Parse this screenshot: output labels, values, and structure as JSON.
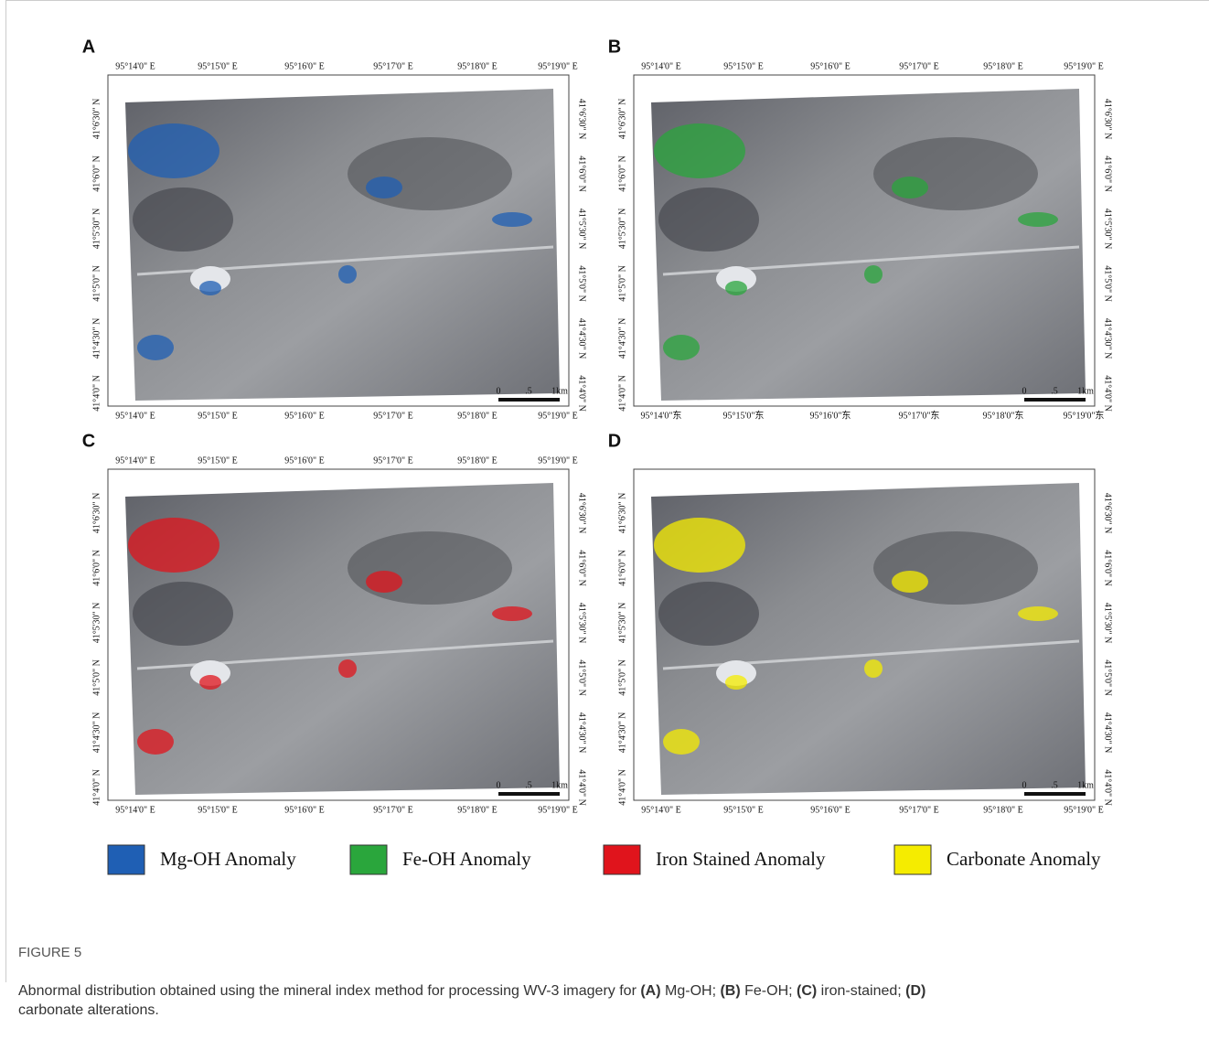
{
  "panels": [
    {
      "label": "A",
      "top_ticks": [
        "95°14'0\" E",
        "95°15'0\" E",
        "95°16'0\" E",
        "95°17'0\" E",
        "95°18'0\" E",
        "95°19'0\" E"
      ],
      "bottom_ticks": [
        "95°14'0\" E",
        "95°15'0\" E",
        "95°16'0\" E",
        "95°17'0\" E",
        "95°18'0\" E",
        "95°19'0\" E"
      ],
      "left_ticks": [
        "41°4'0\" N",
        "41°4'30\" N",
        "41°5'0\" N",
        "41°5'30\" N",
        "41°6'0\" N",
        "41°6'30\" N"
      ],
      "right_ticks": [
        "41°4'0\" N",
        "41°4'30\" N",
        "41°5'0\" N",
        "41°5'30\" N",
        "41°6'0\" N",
        "41°6'30\" N"
      ],
      "scale": [
        "0",
        ".5",
        "1km"
      ]
    },
    {
      "label": "B",
      "top_ticks": [
        "95°14'0\" E",
        "95°15'0\" E",
        "95°16'0\" E",
        "95°17'0\" E",
        "95°18'0\" E",
        "95°19'0\" E"
      ],
      "bottom_ticks": [
        "95°14'0\"东",
        "95°15'0\"东",
        "95°16'0\"东",
        "95°17'0\"东",
        "95°18'0\"东",
        "95°19'0\"东"
      ],
      "left_ticks": [
        "41°4'0\" N",
        "41°4'30\" N",
        "41°5'0\" N",
        "41°5'30\" N",
        "41°6'0\" N",
        "41°6'30\" N"
      ],
      "right_ticks": [
        "41°4'0\" N",
        "41°4'30\" N",
        "41°5'0\" N",
        "41°5'30\" N",
        "41°6'0\" N",
        "41°6'30\" N"
      ],
      "scale": [
        "0",
        ".5",
        "1km"
      ]
    },
    {
      "label": "C",
      "top_ticks": [
        "95°14'0\" E",
        "95°15'0\" E",
        "95°16'0\" E",
        "95°17'0\" E",
        "95°18'0\" E",
        "95°19'0\" E"
      ],
      "bottom_ticks": [
        "95°14'0\" E",
        "95°15'0\" E",
        "95°16'0\" E",
        "95°17'0\" E",
        "95°18'0\" E",
        "95°19'0\" E"
      ],
      "left_ticks": [
        "41°4'0\" N",
        "41°4'30\" N",
        "41°5'0\" N",
        "41°5'30\" N",
        "41°6'0\" N",
        "41°6'30\" N"
      ],
      "right_ticks": [
        "41°4'0\" N",
        "41°4'30\" N",
        "41°5'0\" N",
        "41°5'30\" N",
        "41°6'0\" N",
        "41°6'30\" N"
      ],
      "scale": [
        "0",
        ".5",
        "1km"
      ]
    },
    {
      "label": "D",
      "bottom_ticks": [
        "95°14'0\" E",
        "95°15'0\" E",
        "95°16'0\" E",
        "95°17'0\" E",
        "95°18'0\" E",
        "95°19'0\" E"
      ],
      "left_ticks": [
        "41°4'0\" N",
        "41°4'30\" N",
        "41°5'0\" N",
        "41°5'30\" N",
        "41°6'0\" N",
        "41°6'30\" N"
      ],
      "right_ticks": [
        "41°4'0\" N",
        "41°4'30\" N",
        "41°5'0\" N",
        "41°5'30\" N",
        "41°6'0\" N",
        "41°6'30\" N"
      ],
      "scale": [
        "0",
        ".5",
        "1km"
      ]
    }
  ],
  "legend": [
    {
      "label": "Mg-OH Anomaly",
      "color": "#1f5fb4"
    },
    {
      "label": "Fe-OH Anomaly",
      "color": "#2aa63c"
    },
    {
      "label": "Iron Stained Anomaly",
      "color": "#e0141c"
    },
    {
      "label": "Carbonate Anomaly",
      "color": "#f5ec00"
    }
  ],
  "caption": {
    "title": "FIGURE 5",
    "parts": [
      "Abnormal distribution obtained using the mineral index method for processing WV-3 imagery for ",
      "(A)",
      " Mg-OH; ",
      "(B)",
      " Fe-OH; ",
      "(C)",
      " iron-stained; ",
      "(D)",
      "\ncarbonate alterations."
    ]
  }
}
